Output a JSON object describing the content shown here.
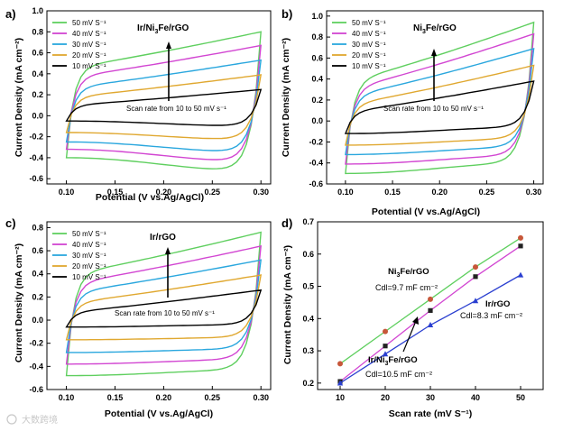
{
  "figure": {
    "watermark": "大数跨境"
  },
  "chart_data": [
    {
      "panel": "a)",
      "type": "line",
      "title": "Ir/Ni3Fe/rGO",
      "xlabel": "Potential (V vs.Ag/AgCl)",
      "ylabel": "Current Density (mA cm⁻²)",
      "xlim": [
        0.08,
        0.31
      ],
      "ylim": [
        -0.65,
        1.0
      ],
      "xticks": [
        "0.10",
        "0.15",
        "0.20",
        "0.25",
        "0.30"
      ],
      "yticks": [
        "-0.6",
        "-0.4",
        "-0.2",
        "0.0",
        "0.2",
        "0.4",
        "0.6",
        "0.8",
        "1.0"
      ],
      "annotation": "Scan rate from 10 to 50 mV s⁻¹",
      "legend_position": "top-left",
      "series": [
        {
          "name": "50 mV S⁻¹",
          "color": "#5fcf5f",
          "upper": [
            0.46,
            0.8
          ],
          "lower": [
            -0.4,
            -0.53
          ]
        },
        {
          "name": "40 mV S⁻¹",
          "color": "#d246d2",
          "upper": [
            0.37,
            0.67
          ],
          "lower": [
            -0.32,
            -0.44
          ]
        },
        {
          "name": "30 mV S⁻¹",
          "color": "#2aa7de",
          "upper": [
            0.27,
            0.53
          ],
          "lower": [
            -0.25,
            -0.35
          ]
        },
        {
          "name": "20 mV S⁻¹",
          "color": "#e0a830",
          "upper": [
            0.18,
            0.39
          ],
          "lower": [
            -0.16,
            -0.23
          ]
        },
        {
          "name": "10 mV S⁻¹",
          "color": "#000000",
          "upper": [
            0.1,
            0.25
          ],
          "lower": [
            -0.05,
            -0.1
          ]
        }
      ]
    },
    {
      "panel": "b)",
      "type": "line",
      "title": "Ni3Fe/rGO",
      "xlabel": "Potential (V vs.Ag/AgCl)",
      "ylabel": "Current Density (mA cm⁻²)",
      "xlim": [
        0.08,
        0.31
      ],
      "ylim": [
        -0.6,
        1.05
      ],
      "xticks": [
        "0.10",
        "0.15",
        "0.20",
        "0.25",
        "0.30"
      ],
      "yticks": [
        "-0.6",
        "-0.4",
        "-0.2",
        "0.0",
        "0.2",
        "0.4",
        "0.6",
        "0.8",
        "1.0"
      ],
      "annotation": "Scan rate from 10 to 50 mV s⁻¹",
      "legend_position": "top-left",
      "series": [
        {
          "name": "50 mV S⁻¹",
          "color": "#5fcf5f",
          "upper": [
            0.38,
            0.94
          ],
          "lower": [
            -0.5,
            -0.4
          ]
        },
        {
          "name": "40 mV S⁻¹",
          "color": "#d246d2",
          "upper": [
            0.31,
            0.83
          ],
          "lower": [
            -0.41,
            -0.33
          ]
        },
        {
          "name": "30 mV S⁻¹",
          "color": "#2aa7de",
          "upper": [
            0.24,
            0.69
          ],
          "lower": [
            -0.32,
            -0.25
          ]
        },
        {
          "name": "20 mV S⁻¹",
          "color": "#e0a830",
          "upper": [
            0.16,
            0.53
          ],
          "lower": [
            -0.23,
            -0.17
          ]
        },
        {
          "name": "10 mV S⁻¹",
          "color": "#000000",
          "upper": [
            0.09,
            0.38
          ],
          "lower": [
            -0.12,
            -0.06
          ]
        }
      ]
    },
    {
      "panel": "c)",
      "type": "line",
      "title": "Ir/rGO",
      "xlabel": "Potential (V vs.Ag/AgCl)",
      "ylabel": "Current Density (mA cm⁻²)",
      "xlim": [
        0.08,
        0.31
      ],
      "ylim": [
        -0.6,
        0.85
      ],
      "xticks": [
        "0.10",
        "0.15",
        "0.20",
        "0.25",
        "0.30"
      ],
      "yticks": [
        "-0.6",
        "-0.4",
        "-0.2",
        "0.0",
        "0.2",
        "0.4",
        "0.6",
        "0.8"
      ],
      "annotation": "Scan rate from 10 to 50 mV s⁻¹",
      "legend_position": "top-left",
      "series": [
        {
          "name": "50 mV S⁻¹",
          "color": "#5fcf5f",
          "upper": [
            0.4,
            0.76
          ],
          "lower": [
            -0.48,
            -0.43
          ]
        },
        {
          "name": "40 mV S⁻¹",
          "color": "#d246d2",
          "upper": [
            0.32,
            0.64
          ],
          "lower": [
            -0.38,
            -0.34
          ]
        },
        {
          "name": "30 mV S⁻¹",
          "color": "#2aa7de",
          "upper": [
            0.24,
            0.52
          ],
          "lower": [
            -0.28,
            -0.25
          ]
        },
        {
          "name": "20 mV S⁻¹",
          "color": "#e0a830",
          "upper": [
            0.15,
            0.39
          ],
          "lower": [
            -0.17,
            -0.15
          ]
        },
        {
          "name": "10 mV S⁻¹",
          "color": "#000000",
          "upper": [
            0.07,
            0.26
          ],
          "lower": [
            -0.06,
            -0.04
          ]
        }
      ]
    },
    {
      "panel": "d)",
      "type": "scatter",
      "xlabel": "Scan rate (mV S⁻¹)",
      "ylabel": "Current Density (mA cm⁻²)",
      "xlim": [
        5,
        55
      ],
      "ylim": [
        0.18,
        0.7
      ],
      "xticks": [
        "10",
        "20",
        "30",
        "40",
        "50"
      ],
      "yticks": [
        "0.2",
        "0.3",
        "0.4",
        "0.5",
        "0.6",
        "0.7"
      ],
      "x": [
        10,
        20,
        30,
        40,
        50
      ],
      "series": [
        {
          "name": "Ni3Fe/rGO",
          "cdl": "Cdl=9.7 mF cm⁻²",
          "color": "#c7573a",
          "line_color": "#5fcf5f",
          "values": [
            0.26,
            0.36,
            0.46,
            0.56,
            0.65
          ]
        },
        {
          "name": "Ir/Ni3Fe/rGO",
          "cdl": "Cdl=10.5 mF cm⁻²",
          "color": "#222222",
          "line_color": "#d246d2",
          "values": [
            0.205,
            0.315,
            0.425,
            0.53,
            0.625
          ]
        },
        {
          "name": "Ir/rGO",
          "cdl": "Cdl=8.3 mF cm⁻²",
          "color": "#2a3fd0",
          "line_color": "#2a3fd0",
          "values": [
            0.2,
            0.29,
            0.38,
            0.455,
            0.535
          ]
        }
      ]
    }
  ]
}
